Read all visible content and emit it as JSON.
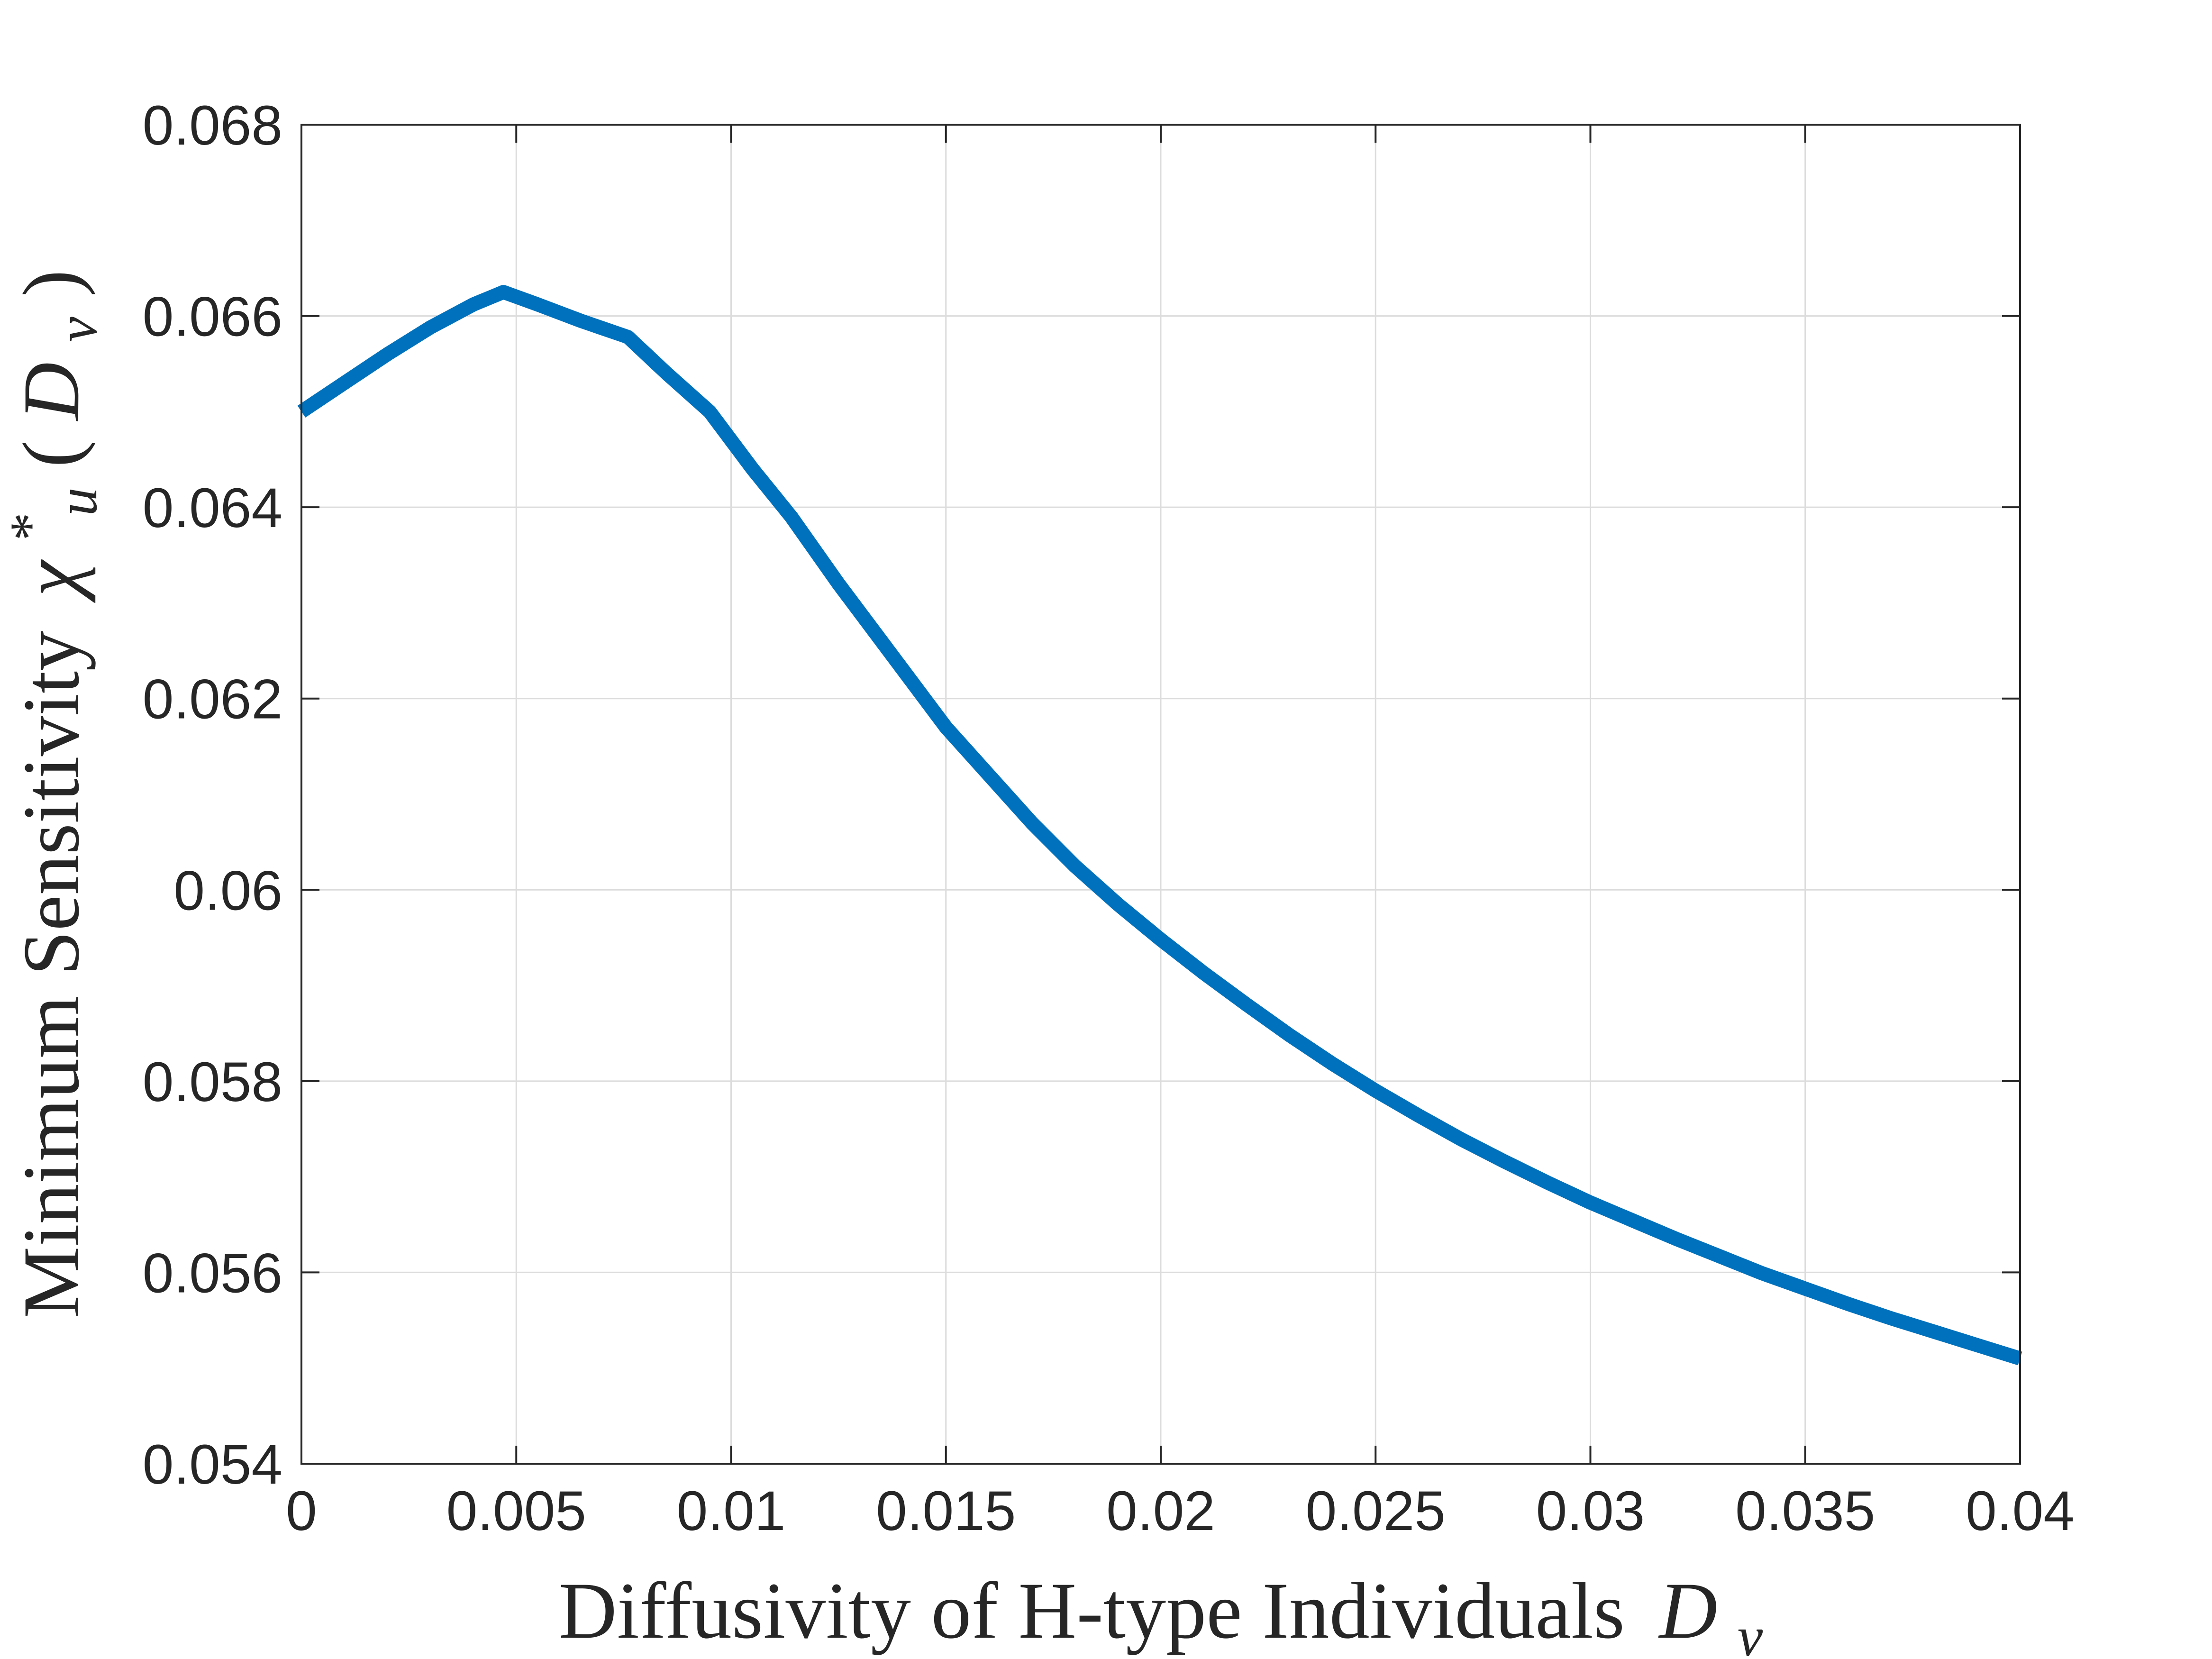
{
  "chart_data": {
    "type": "line",
    "title": "",
    "xlabel": {
      "text": "Diffusivity of H-type Individuals",
      "math_symbol": "D",
      "math_subscript": "v"
    },
    "ylabel": {
      "text": "Minimum Sensitivity",
      "math_symbol": "χ",
      "math_subscript": "u",
      "math_superscript": "*",
      "math_open": "(",
      "math_arg": "D",
      "math_arg_subscript": "v",
      "math_close": ")"
    },
    "xlim": [
      0,
      0.04
    ],
    "ylim": [
      0.054,
      0.068
    ],
    "xticks": [
      {
        "value": 0,
        "label": "0"
      },
      {
        "value": 0.005,
        "label": "0.005"
      },
      {
        "value": 0.01,
        "label": "0.01"
      },
      {
        "value": 0.015,
        "label": "0.015"
      },
      {
        "value": 0.02,
        "label": "0.02"
      },
      {
        "value": 0.025,
        "label": "0.025"
      },
      {
        "value": 0.03,
        "label": "0.03"
      },
      {
        "value": 0.035,
        "label": "0.035"
      },
      {
        "value": 0.04,
        "label": "0.04"
      }
    ],
    "yticks": [
      {
        "value": 0.054,
        "label": "0.054"
      },
      {
        "value": 0.056,
        "label": "0.056"
      },
      {
        "value": 0.058,
        "label": "0.058"
      },
      {
        "value": 0.06,
        "label": "0.06"
      },
      {
        "value": 0.062,
        "label": "0.062"
      },
      {
        "value": 0.064,
        "label": "0.064"
      },
      {
        "value": 0.066,
        "label": "0.066"
      },
      {
        "value": 0.068,
        "label": "0.068"
      }
    ],
    "grid": true,
    "series": [
      {
        "color": "#0072BD",
        "x": [
          0,
          0.001,
          0.002,
          0.003,
          0.004,
          0.0047,
          0.0055,
          0.0065,
          0.0076,
          0.0085,
          0.0095,
          0.0105,
          0.0114,
          0.0125,
          0.0135,
          0.0145,
          0.015,
          0.016,
          0.017,
          0.018,
          0.019,
          0.02,
          0.021,
          0.022,
          0.023,
          0.024,
          0.025,
          0.026,
          0.027,
          0.028,
          0.029,
          0.03,
          0.031,
          0.032,
          0.033,
          0.034,
          0.035,
          0.036,
          0.037,
          0.038,
          0.039,
          0.04
        ],
        "y": [
          0.065,
          0.0653,
          0.0656,
          0.06588,
          0.06612,
          0.06625,
          0.06612,
          0.06595,
          0.06578,
          0.0654,
          0.065,
          0.0644,
          0.0639,
          0.0632,
          0.0626,
          0.062,
          0.0617,
          0.0612,
          0.0607,
          0.06025,
          0.05985,
          0.05948,
          0.05913,
          0.0588,
          0.05848,
          0.05818,
          0.0579,
          0.05764,
          0.05739,
          0.05716,
          0.05694,
          0.05673,
          0.05654,
          0.05635,
          0.05617,
          0.05599,
          0.05583,
          0.05567,
          0.05552,
          0.05538,
          0.05524,
          0.0551
        ]
      }
    ]
  }
}
